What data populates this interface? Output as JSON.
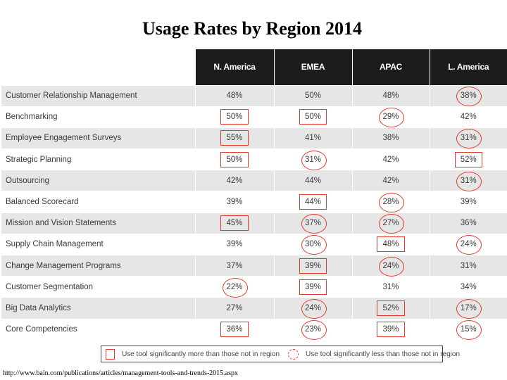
{
  "title": "Usage Rates by Region 2014",
  "chart_data": {
    "type": "table",
    "title": "Usage Rates by Region 2014",
    "columns": [
      "N. America",
      "EMEA",
      "APAC",
      "L. America"
    ],
    "rows": [
      {
        "label": "Customer Relationship Management",
        "values": [
          "48%",
          "50%",
          "48%",
          "38%"
        ],
        "marks": [
          "",
          "",
          "",
          "less"
        ]
      },
      {
        "label": "Benchmarking",
        "values": [
          "50%",
          "50%",
          "29%",
          "42%"
        ],
        "marks": [
          "more",
          "more",
          "less",
          ""
        ]
      },
      {
        "label": "Employee Engagement Surveys",
        "values": [
          "55%",
          "41%",
          "38%",
          "31%"
        ],
        "marks": [
          "more",
          "",
          "",
          "less"
        ]
      },
      {
        "label": "Strategic Planning",
        "values": [
          "50%",
          "31%",
          "42%",
          "52%"
        ],
        "marks": [
          "more",
          "less",
          "",
          "more"
        ]
      },
      {
        "label": "Outsourcing",
        "values": [
          "42%",
          "44%",
          "42%",
          "31%"
        ],
        "marks": [
          "",
          "",
          "",
          "less"
        ]
      },
      {
        "label": "Balanced Scorecard",
        "values": [
          "39%",
          "44%",
          "28%",
          "39%"
        ],
        "marks": [
          "",
          "more",
          "less",
          ""
        ]
      },
      {
        "label": "Mission and Vision Statements",
        "values": [
          "45%",
          "37%",
          "27%",
          "36%"
        ],
        "marks": [
          "more",
          "less",
          "less",
          ""
        ]
      },
      {
        "label": "Supply Chain Management",
        "values": [
          "39%",
          "30%",
          "48%",
          "24%"
        ],
        "marks": [
          "",
          "less",
          "more",
          "less"
        ]
      },
      {
        "label": "Change Management Programs",
        "values": [
          "37%",
          "39%",
          "24%",
          "31%"
        ],
        "marks": [
          "",
          "more",
          "less",
          ""
        ]
      },
      {
        "label": "Customer Segmentation",
        "values": [
          "22%",
          "39%",
          "31%",
          "34%"
        ],
        "marks": [
          "less",
          "more",
          "",
          ""
        ]
      },
      {
        "label": "Big Data Analytics",
        "values": [
          "27%",
          "24%",
          "52%",
          "17%"
        ],
        "marks": [
          "",
          "less",
          "more",
          "less"
        ]
      },
      {
        "label": "Core Competencies",
        "values": [
          "36%",
          "23%",
          "39%",
          "15%"
        ],
        "marks": [
          "more",
          "less",
          "more",
          "less"
        ]
      }
    ]
  },
  "legend": {
    "more_label": "Use tool significantly more than those not in region",
    "less_label": "Use tool significantly less than those not in region"
  },
  "source": "http://www.bain.com/publications/articles/management-tools-and-trends-2015.aspx"
}
